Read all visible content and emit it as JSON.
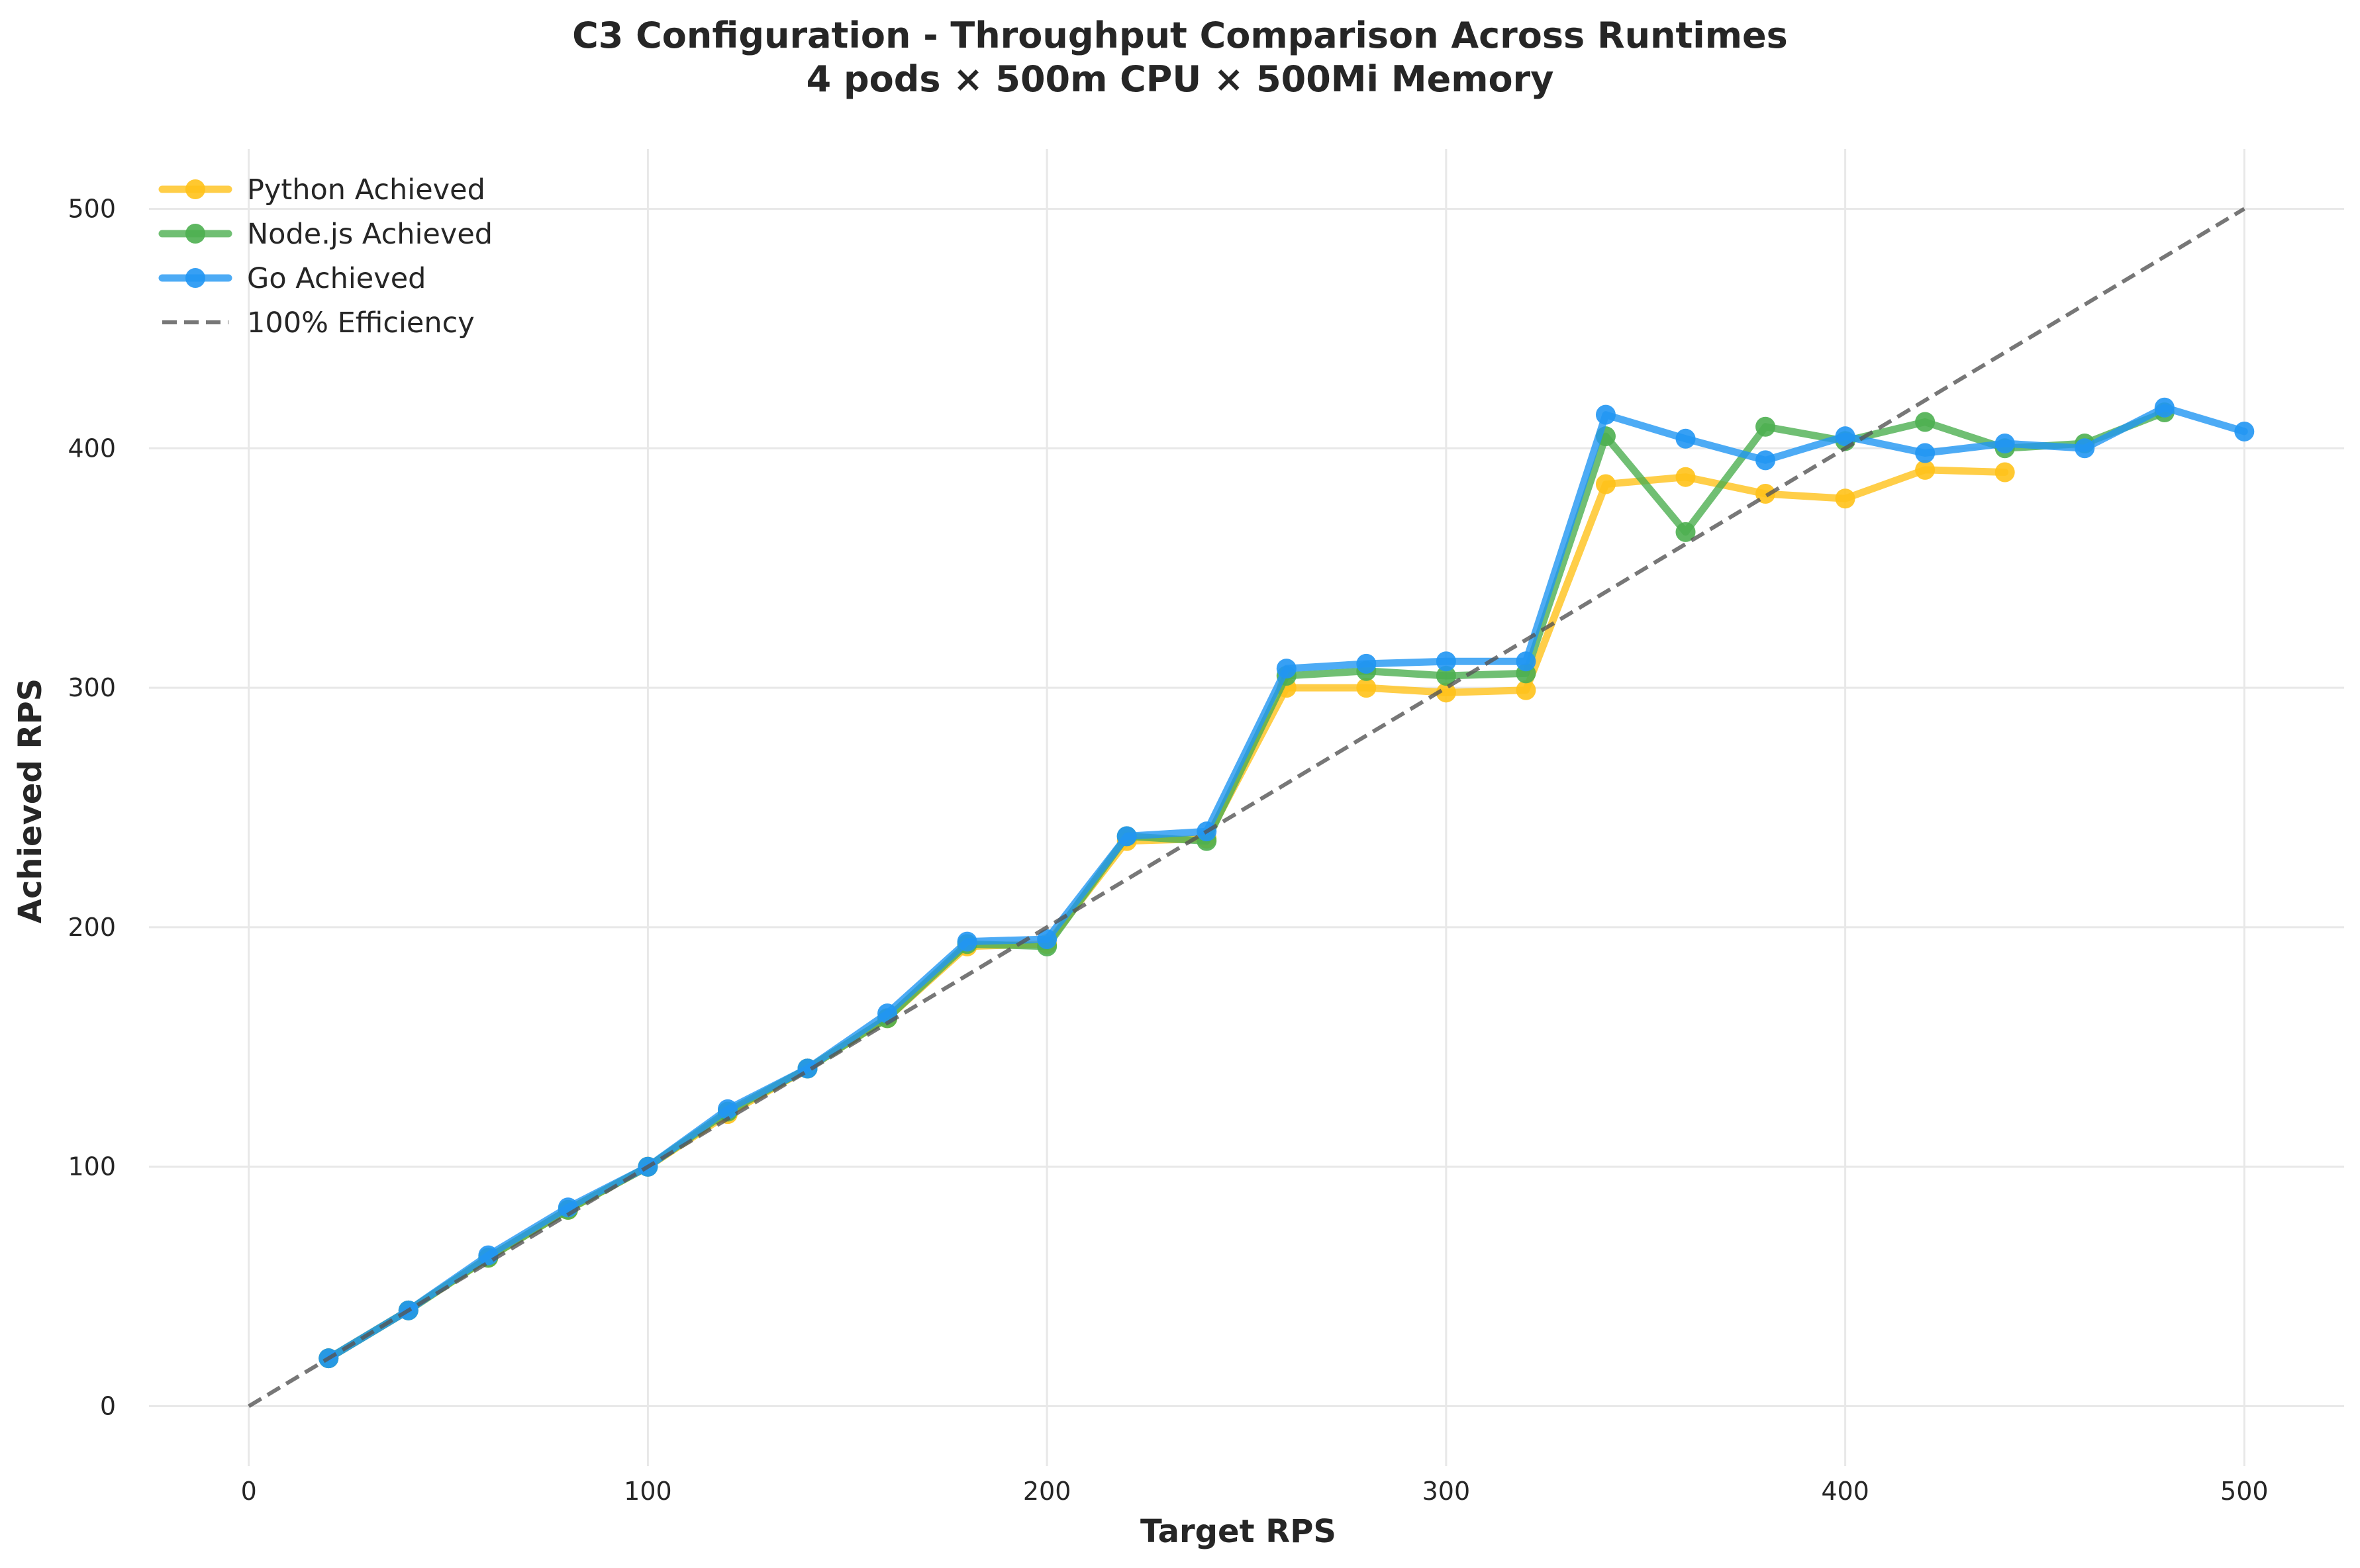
{
  "chart_data": {
    "type": "line",
    "title": "C3 Configuration - Throughput Comparison Across Runtimes",
    "subtitle": "4 pods × 500m CPU × 500Mi Memory",
    "xlabel": "Target RPS",
    "ylabel": "Achieved RPS",
    "xlim": [
      -25,
      525
    ],
    "ylim": [
      -25,
      525
    ],
    "xticks": [
      0,
      100,
      200,
      300,
      400,
      500
    ],
    "yticks": [
      0,
      100,
      200,
      300,
      400,
      500
    ],
    "grid": true,
    "legend_position": "top-left",
    "series": [
      {
        "name": "Python Achieved",
        "color": "#FFC21A",
        "x": [
          20,
          40,
          60,
          80,
          100,
          120,
          140,
          160,
          180,
          200,
          220,
          240,
          260,
          280,
          300,
          320,
          340,
          360,
          380,
          400,
          420,
          440
        ],
        "y": [
          20,
          40,
          62,
          82,
          100,
          122,
          141,
          162,
          192,
          193,
          236,
          237,
          300,
          300,
          298,
          299,
          385,
          388,
          381,
          379,
          391,
          390
        ]
      },
      {
        "name": "Node.js Achieved",
        "color": "#4CAF50",
        "x": [
          20,
          40,
          60,
          80,
          100,
          120,
          140,
          160,
          180,
          200,
          220,
          240,
          260,
          280,
          300,
          320,
          340,
          360,
          380,
          400,
          420,
          440,
          460,
          480
        ],
        "y": [
          20,
          40,
          62,
          82,
          100,
          123,
          141,
          162,
          193,
          192,
          238,
          236,
          305,
          307,
          305,
          306,
          405,
          365,
          409,
          403,
          411,
          400,
          402,
          415
        ]
      },
      {
        "name": "Go Achieved",
        "color": "#2196F3",
        "x": [
          20,
          40,
          60,
          80,
          100,
          120,
          140,
          160,
          180,
          200,
          220,
          240,
          260,
          280,
          300,
          320,
          340,
          360,
          380,
          400,
          420,
          440,
          460,
          480,
          500
        ],
        "y": [
          20,
          40,
          63,
          83,
          100,
          124,
          141,
          164,
          194,
          195,
          238,
          240,
          308,
          310,
          311,
          311,
          414,
          404,
          395,
          405,
          398,
          402,
          400,
          417,
          407
        ]
      },
      {
        "name": "100% Efficiency",
        "color": "#555555",
        "style": "dashed",
        "x": [
          0,
          500
        ],
        "y": [
          0,
          500
        ]
      }
    ]
  }
}
